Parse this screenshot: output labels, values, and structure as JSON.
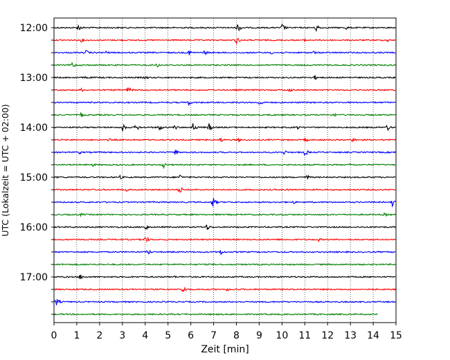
{
  "chart_data": {
    "type": "line",
    "subtype": "helicorder",
    "xlabel": "Zeit  [min]",
    "ylabel": "UTC (Lokalzeit = UTC + 02:00)",
    "xlim": [
      0,
      15
    ],
    "x_ticks": [
      "0",
      "1",
      "2",
      "3",
      "4",
      "5",
      "6",
      "7",
      "8",
      "9",
      "10",
      "11",
      "12",
      "13",
      "14",
      "15"
    ],
    "y_tick_labels": [
      "12:00",
      "13:00",
      "14:00",
      "15:00",
      "16:00",
      "17:00"
    ],
    "grid": "vertical dotted lines at each minute",
    "trace_interval_min": 15,
    "trace_colors": [
      "#000000",
      "#ff0000",
      "#0000ff",
      "#008000"
    ],
    "traces": [
      {
        "start": "12:00",
        "color": "#000000",
        "end_min": 15,
        "events": [
          {
            "t": 1.05,
            "a": 6
          },
          {
            "t": 8.05,
            "a": 7
          },
          {
            "t": 10.0,
            "a": 6
          },
          {
            "t": 11.5,
            "a": 6
          },
          {
            "t": 12.8,
            "a": 3
          }
        ]
      },
      {
        "start": "12:15",
        "color": "#ff0000",
        "end_min": 15,
        "events": [
          {
            "t": 1.2,
            "a": 3
          },
          {
            "t": 8.0,
            "a": 6
          },
          {
            "t": 11.0,
            "a": 3
          },
          {
            "t": 14.6,
            "a": 3
          }
        ]
      },
      {
        "start": "12:30",
        "color": "#0000ff",
        "end_min": 15,
        "events": [
          {
            "t": 1.4,
            "a": 4
          },
          {
            "t": 2.3,
            "a": 3
          },
          {
            "t": 5.9,
            "a": 5
          },
          {
            "t": 6.6,
            "a": 4
          },
          {
            "t": 9.5,
            "a": 3
          },
          {
            "t": 11.4,
            "a": 3
          }
        ]
      },
      {
        "start": "12:45",
        "color": "#008000",
        "end_min": 15,
        "events": [
          {
            "t": 0.8,
            "a": 5
          },
          {
            "t": 4.5,
            "a": 4
          }
        ]
      },
      {
        "start": "13:00",
        "color": "#000000",
        "end_min": 15,
        "events": [
          {
            "t": 1.4,
            "a": 3
          },
          {
            "t": 4.0,
            "a": 3
          },
          {
            "t": 11.4,
            "a": 5
          }
        ]
      },
      {
        "start": "13:15",
        "color": "#ff0000",
        "end_min": 15,
        "events": [
          {
            "t": 1.2,
            "a": 3
          },
          {
            "t": 3.25,
            "a": 6
          },
          {
            "t": 10.3,
            "a": 4
          }
        ]
      },
      {
        "start": "13:30",
        "color": "#0000ff",
        "end_min": 15,
        "events": [
          {
            "t": 5.9,
            "a": 4
          },
          {
            "t": 9.0,
            "a": 6
          }
        ]
      },
      {
        "start": "13:45",
        "color": "#008000",
        "end_min": 15,
        "events": [
          {
            "t": 1.2,
            "a": 4
          },
          {
            "t": 12.3,
            "a": 3
          }
        ]
      },
      {
        "start": "14:00",
        "color": "#000000",
        "end_min": 15,
        "events": [
          {
            "t": 3.0,
            "a": 6
          },
          {
            "t": 3.6,
            "a": 6
          },
          {
            "t": 4.6,
            "a": 5
          },
          {
            "t": 5.3,
            "a": 4
          },
          {
            "t": 6.1,
            "a": 7
          },
          {
            "t": 6.8,
            "a": 6
          },
          {
            "t": 10.7,
            "a": 3
          },
          {
            "t": 14.6,
            "a": 6
          }
        ]
      },
      {
        "start": "14:15",
        "color": "#ff0000",
        "end_min": 15,
        "events": [
          {
            "t": 2.4,
            "a": 3
          },
          {
            "t": 7.3,
            "a": 4
          },
          {
            "t": 8.1,
            "a": 4
          },
          {
            "t": 11.0,
            "a": 4
          },
          {
            "t": 13.1,
            "a": 4
          }
        ]
      },
      {
        "start": "14:30",
        "color": "#0000ff",
        "end_min": 15,
        "events": [
          {
            "t": 1.1,
            "a": 3
          },
          {
            "t": 5.3,
            "a": 5
          },
          {
            "t": 10.1,
            "a": 4
          },
          {
            "t": 11.0,
            "a": 6
          },
          {
            "t": 15.0,
            "a": 4
          }
        ]
      },
      {
        "start": "14:45",
        "color": "#008000",
        "end_min": 15,
        "events": [
          {
            "t": 1.7,
            "a": 3
          },
          {
            "t": 4.8,
            "a": 5
          },
          {
            "t": 13.0,
            "a": 3
          }
        ]
      },
      {
        "start": "15:00",
        "color": "#000000",
        "end_min": 15,
        "events": [
          {
            "t": 2.9,
            "a": 3
          },
          {
            "t": 5.5,
            "a": 5
          },
          {
            "t": 11.1,
            "a": 4
          }
        ]
      },
      {
        "start": "15:15",
        "color": "#ff0000",
        "end_min": 15,
        "events": [
          {
            "t": 3.2,
            "a": 3
          },
          {
            "t": 5.5,
            "a": 6
          },
          {
            "t": 10.2,
            "a": 3
          }
        ]
      },
      {
        "start": "15:30",
        "color": "#0000ff",
        "end_min": 15,
        "events": [
          {
            "t": 6.95,
            "a": 9
          },
          {
            "t": 10.5,
            "a": 3
          },
          {
            "t": 14.85,
            "a": 7
          }
        ]
      },
      {
        "start": "15:45",
        "color": "#008000",
        "end_min": 15,
        "events": [
          {
            "t": 1.2,
            "a": 3
          },
          {
            "t": 14.5,
            "a": 3
          }
        ]
      },
      {
        "start": "16:00",
        "color": "#000000",
        "end_min": 15,
        "events": [
          {
            "t": 4.0,
            "a": 5
          },
          {
            "t": 6.7,
            "a": 5
          }
        ]
      },
      {
        "start": "16:15",
        "color": "#ff0000",
        "end_min": 15,
        "events": [
          {
            "t": 4.0,
            "a": 6
          },
          {
            "t": 11.6,
            "a": 3
          }
        ]
      },
      {
        "start": "16:30",
        "color": "#0000ff",
        "end_min": 15,
        "events": [
          {
            "t": 4.1,
            "a": 5
          },
          {
            "t": 7.3,
            "a": 5
          }
        ]
      },
      {
        "start": "16:45",
        "color": "#008000",
        "end_min": 15,
        "events": []
      },
      {
        "start": "17:00",
        "color": "#000000",
        "end_min": 15,
        "events": [
          {
            "t": 1.15,
            "a": 5
          },
          {
            "t": 5.2,
            "a": 3
          }
        ]
      },
      {
        "start": "17:15",
        "color": "#ff0000",
        "end_min": 15,
        "events": [
          {
            "t": 5.65,
            "a": 6
          },
          {
            "t": 7.6,
            "a": 3
          },
          {
            "t": 15.0,
            "a": 3
          }
        ]
      },
      {
        "start": "17:30",
        "color": "#0000ff",
        "end_min": 15,
        "events": [
          {
            "t": 0.1,
            "a": 6
          }
        ]
      },
      {
        "start": "17:45",
        "color": "#008000",
        "end_min": 14.2,
        "events": [
          {
            "t": 4.4,
            "a": 2
          }
        ]
      }
    ]
  }
}
